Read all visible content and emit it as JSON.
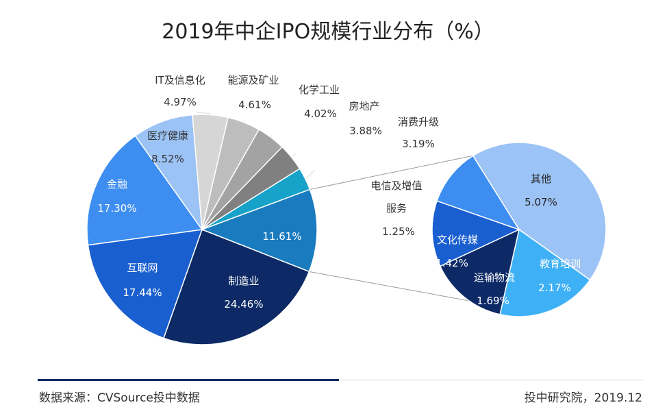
{
  "chart_data": [
    {
      "type": "pie",
      "title": "2019年中企IPO规模行业分布（%）",
      "unit": "%",
      "slices": [
        {
          "label": "IT及信息化",
          "value": 4.97,
          "value_label": "4.97%",
          "color": "#d6d6d6"
        },
        {
          "label": "能源及矿业",
          "value": 4.61,
          "value_label": "4.61%",
          "color": "#bdbdbd"
        },
        {
          "label": "化学工业",
          "value": 4.02,
          "value_label": "4.02%",
          "color": "#a3a3a3"
        },
        {
          "label": "房地产",
          "value": 3.88,
          "value_label": "3.88%",
          "color": "#808080"
        },
        {
          "label": "消费升级",
          "value": 3.19,
          "value_label": "3.19%",
          "color": "#17a2c9"
        },
        {
          "label": "11.61%",
          "value": 11.61,
          "value_label": "11.61%",
          "color": "#1a7bbf"
        },
        {
          "label": "制造业",
          "value": 24.46,
          "value_label": "24.46%",
          "color": "#0d2a66"
        },
        {
          "label": "互联网",
          "value": 17.44,
          "value_label": "17.44%",
          "color": "#1a5fcf"
        },
        {
          "label": "金融",
          "value": 17.3,
          "value_label": "17.30%",
          "color": "#3d8ef0"
        },
        {
          "label": "医疗健康",
          "value": 8.52,
          "value_label": "8.52%",
          "color": "#9cc3f5"
        }
      ]
    },
    {
      "type": "pie",
      "title": "11.61%",
      "slices": [
        {
          "label": "其他",
          "value": 5.07,
          "value_label": "5.07%",
          "color": "#9cc3f5"
        },
        {
          "label": "教育培训",
          "value": 2.17,
          "value_label": "2.17%",
          "color": "#3eb0f5"
        },
        {
          "label": "运输物流",
          "value": 1.69,
          "value_label": "1.69%",
          "color": "#0d2a66"
        },
        {
          "label": "文化传媒",
          "value": 1.42,
          "value_label": "1.42%",
          "color": "#1a5fcf"
        },
        {
          "label": "电信及增值服务",
          "value": 1.25,
          "value_label": "1.25%",
          "color": "#3d8ef0"
        }
      ]
    }
  ],
  "footer": {
    "source": "数据来源：CVSource投中数据",
    "credit": "投中研究院，2019.12"
  }
}
